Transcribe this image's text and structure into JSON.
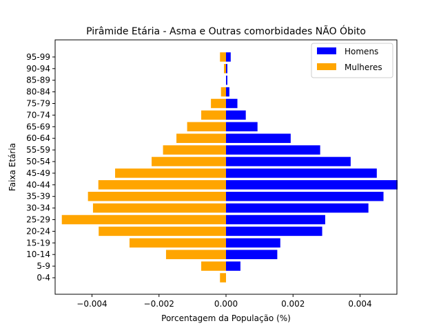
{
  "chart_data": {
    "type": "bar",
    "orientation": "horizontal",
    "title": "Pirâmide Etária - Asma e Outras comorbidades NÃO Óbito",
    "xlabel": "Porcentagem da População (%)",
    "ylabel": "Faixa Etária",
    "xlim": [
      -0.0051,
      0.0051
    ],
    "xticks": [
      -0.004,
      -0.002,
      0.0,
      0.002,
      0.004
    ],
    "xtick_labels": [
      "−0.004",
      "−0.002",
      "0.000",
      "0.002",
      "0.004"
    ],
    "categories": [
      "0-4",
      "5-9",
      "10-14",
      "15-19",
      "20-24",
      "25-29",
      "30-34",
      "35-39",
      "40-44",
      "45-49",
      "50-54",
      "55-59",
      "60-64",
      "65-69",
      "70-74",
      "75-79",
      "80-84",
      "85-89",
      "90-94",
      "95-99"
    ],
    "legend_position": "upper right",
    "series": [
      {
        "name": "Homens",
        "color": "#0000ff",
        "values": [
          0.0,
          0.00043,
          0.00153,
          0.00162,
          0.00287,
          0.00296,
          0.00425,
          0.0047,
          0.00512,
          0.0045,
          0.00372,
          0.00281,
          0.00193,
          0.00094,
          0.00059,
          0.00034,
          0.0001,
          4e-05,
          4e-05,
          0.00014
        ]
      },
      {
        "name": "Mulheres",
        "color": "#ffa500",
        "values": [
          -0.00018,
          -0.00074,
          -0.00179,
          -0.00288,
          -0.0038,
          -0.0049,
          -0.00397,
          -0.00412,
          -0.00381,
          -0.00331,
          -0.00222,
          -0.00188,
          -0.00148,
          -0.00116,
          -0.00074,
          -0.00045,
          -0.00015,
          0.0,
          -6e-05,
          -0.00018
        ]
      }
    ]
  }
}
